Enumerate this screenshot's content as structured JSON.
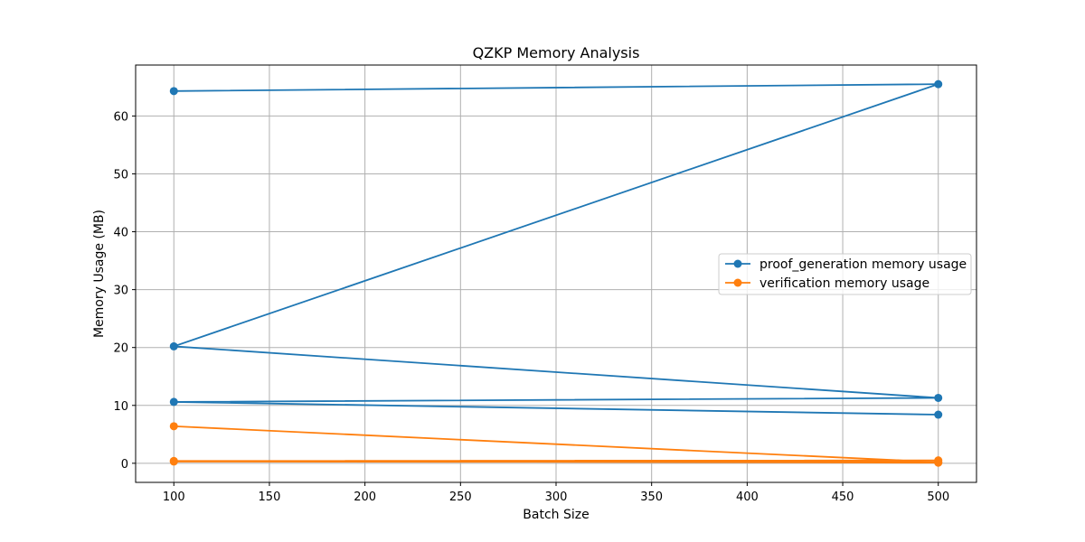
{
  "chart_data": {
    "type": "line",
    "title": "QZKP Memory Analysis",
    "xlabel": "Batch Size",
    "ylabel": "Memory Usage (MB)",
    "xlim": [
      80,
      520
    ],
    "ylim": [
      -3.3,
      68.8
    ],
    "xticks": [
      100,
      150,
      200,
      250,
      300,
      350,
      400,
      450,
      500
    ],
    "yticks": [
      0,
      10,
      20,
      30,
      40,
      50,
      60
    ],
    "grid": true,
    "legend_position": "center-right",
    "series": [
      {
        "name": "proof_generation memory usage",
        "color": "#1f77b4",
        "marker": "circle",
        "x": [
          100,
          500,
          100,
          500,
          100,
          500
        ],
        "y": [
          64.3,
          65.5,
          20.2,
          11.3,
          10.6,
          8.4
        ]
      },
      {
        "name": "verification memory usage",
        "color": "#ff7f0e",
        "marker": "circle",
        "x": [
          100,
          500,
          100,
          500,
          100,
          500
        ],
        "y": [
          6.4,
          0.2,
          0.3,
          0.5,
          0.4,
          0.1
        ]
      }
    ]
  }
}
